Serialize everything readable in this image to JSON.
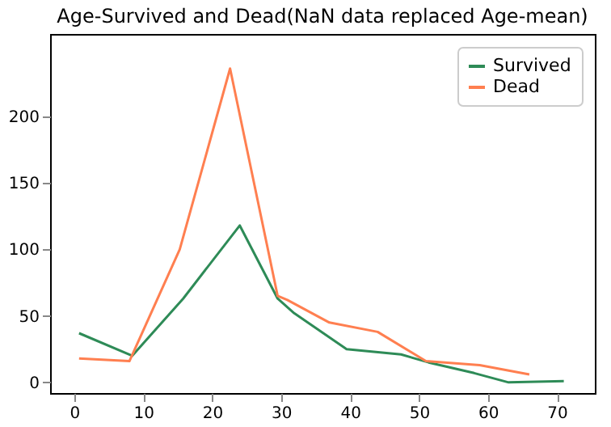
{
  "chart_data": {
    "type": "line",
    "title": "Age-Survived and Dead(NaN data replaced Age-mean)",
    "xlim": [
      -3.5,
      75.5
    ],
    "xticks": [
      0,
      10,
      20,
      30,
      40,
      50,
      60,
      70
    ],
    "ylim": [
      -8,
      262
    ],
    "yticks": [
      0,
      50,
      100,
      150,
      200
    ],
    "grid": false,
    "legend": "top right",
    "series": [
      {
        "name": "Survived",
        "color": "#2e8b57",
        "x": [
          0.7,
          8.4,
          15.8,
          24,
          29.5,
          31.9,
          39.5,
          47.4,
          51.4,
          58,
          63,
          71
        ],
        "values": [
          37,
          20,
          63,
          118,
          63,
          52,
          25,
          21,
          15,
          7,
          0,
          1
        ]
      },
      {
        "name": "Dead",
        "color": "#ff7f50",
        "x": [
          0.7,
          8,
          15.3,
          22.6,
          29.5,
          30.9,
          37,
          44,
          51,
          58.8,
          66
        ],
        "values": [
          18,
          16,
          100,
          236,
          65,
          62,
          45,
          38,
          16,
          13,
          6
        ]
      }
    ]
  }
}
